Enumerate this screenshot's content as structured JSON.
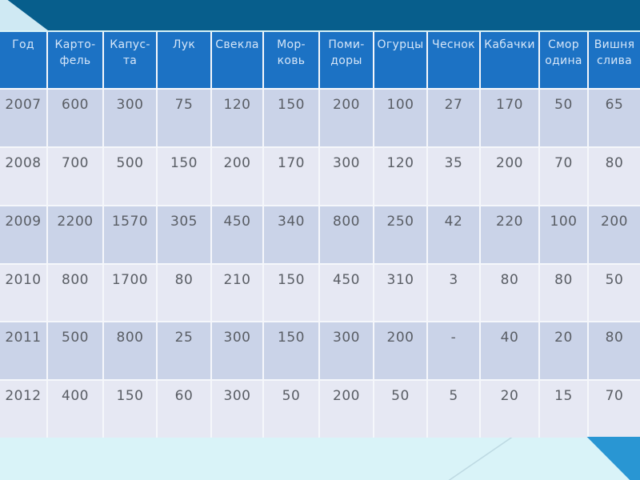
{
  "slide": {
    "description": "Presentation slide containing a harvest data table by year"
  },
  "colors": {
    "top_band": "#075e8c",
    "corner_triangle": "#cfe9f3",
    "bottom_band": "#d9f3f8",
    "bottom_triangle": "#2996d3",
    "header_bg": "#1c72c4",
    "header_text": "#d6e6f8",
    "row_odd_bg": "#cad3e8",
    "row_even_bg": "#e6e8f3",
    "grid_line": "#f5f7fb",
    "cell_text": "#595d64",
    "diag_line": "#bdd9e2"
  },
  "table": {
    "columns": [
      "Год",
      "Карто-\nфель",
      "Капус-\nта",
      "Лук",
      "Свекла",
      "Мор-\nковь",
      "Поми-\nдоры",
      "Огурцы",
      "Чеснок",
      "Кабачки",
      "Смор\nодина",
      "Вишня\nслива"
    ],
    "rows": [
      [
        "2007",
        "600",
        "300",
        "75",
        "120",
        "150",
        "200",
        "100",
        "27",
        "170",
        "50",
        "65"
      ],
      [
        "2008",
        "700",
        "500",
        "150",
        "200",
        "170",
        "300",
        "120",
        "35",
        "200",
        "70",
        "80"
      ],
      [
        "2009",
        "2200",
        "1570",
        "305",
        "450",
        "340",
        "800",
        "250",
        "42",
        "220",
        "100",
        "200"
      ],
      [
        "2010",
        "800",
        "1700",
        "80",
        "210",
        "150",
        "450",
        "310",
        "3",
        "80",
        "80",
        "50"
      ],
      [
        "2011",
        "500",
        "800",
        "25",
        "300",
        "150",
        "300",
        "200",
        "-",
        "40",
        "20",
        "80"
      ],
      [
        "2012",
        "400",
        "150",
        "60",
        "300",
        "50",
        "200",
        "50",
        "5",
        "20",
        "15",
        "70"
      ]
    ]
  },
  "chart_data": {
    "type": "table",
    "title": "",
    "categories": [
      "2007",
      "2008",
      "2009",
      "2010",
      "2011",
      "2012"
    ],
    "series": [
      {
        "name": "Картофель",
        "values": [
          600,
          700,
          2200,
          800,
          500,
          400
        ]
      },
      {
        "name": "Капуста",
        "values": [
          300,
          500,
          1570,
          1700,
          800,
          150
        ]
      },
      {
        "name": "Лук",
        "values": [
          75,
          150,
          305,
          80,
          25,
          60
        ]
      },
      {
        "name": "Свекла",
        "values": [
          120,
          200,
          450,
          210,
          300,
          300
        ]
      },
      {
        "name": "Морковь",
        "values": [
          150,
          170,
          340,
          150,
          150,
          50
        ]
      },
      {
        "name": "Помидоры",
        "values": [
          200,
          300,
          800,
          450,
          300,
          200
        ]
      },
      {
        "name": "Огурцы",
        "values": [
          100,
          120,
          250,
          310,
          200,
          50
        ]
      },
      {
        "name": "Чеснок",
        "values": [
          27,
          35,
          42,
          3,
          null,
          5
        ]
      },
      {
        "name": "Кабачки",
        "values": [
          170,
          200,
          220,
          80,
          40,
          20
        ]
      },
      {
        "name": "Смородина",
        "values": [
          50,
          70,
          100,
          80,
          20,
          15
        ]
      },
      {
        "name": "Вишня слива",
        "values": [
          65,
          80,
          200,
          50,
          80,
          70
        ]
      }
    ]
  }
}
